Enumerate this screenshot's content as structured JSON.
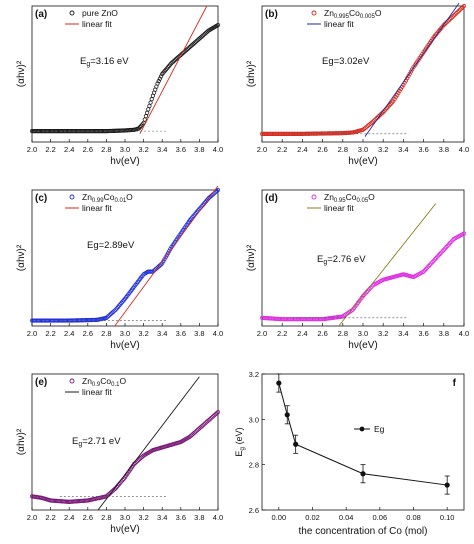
{
  "colors": {
    "black": "#1a1a1a",
    "red": "#d42a1e",
    "blue": "#1f2fd6",
    "magenta": "#dc2fe0",
    "purple": "#7a1a78",
    "olive": "#8a7c1c",
    "navy": "#1a2aa6",
    "gray": "#555555"
  },
  "chart_data": [
    {
      "panel": "(a)",
      "type": "line",
      "xlabel": "hν(eV)",
      "ylabel": "(αhν)²",
      "xlim": [
        2.0,
        4.0
      ],
      "xticks": [
        "2.0",
        "2.2",
        "2.4",
        "2.6",
        "2.8",
        "3.0",
        "3.2",
        "3.4",
        "3.6",
        "3.8",
        "4.0"
      ],
      "series": [
        {
          "name": "pure ZnO",
          "kind": "data",
          "color": "black",
          "marker": "circle",
          "x": [
            2.0,
            2.4,
            2.8,
            3.0,
            3.1,
            3.15,
            3.2,
            3.25,
            3.3,
            3.35,
            3.4,
            3.5,
            3.6,
            3.7,
            3.8,
            3.9,
            4.0
          ],
          "y": [
            0.08,
            0.08,
            0.08,
            0.085,
            0.09,
            0.1,
            0.14,
            0.24,
            0.34,
            0.43,
            0.5,
            0.58,
            0.64,
            0.7,
            0.76,
            0.82,
            0.86
          ]
        },
        {
          "name": "linear fit",
          "kind": "fit",
          "color": "red",
          "x": [
            3.16,
            3.88
          ],
          "y": [
            0.06,
            1.0
          ]
        }
      ],
      "annotation": "E",
      "annotation_sub": "g",
      "annotation_rest": "=3.16 eV"
    },
    {
      "panel": "(b)",
      "type": "line",
      "xlabel": "hν(eV)",
      "ylabel": "(αhν)²",
      "xlim": [
        2.0,
        4.0
      ],
      "xticks": [
        "2.0",
        "2.2",
        "2.4",
        "2.6",
        "2.8",
        "3.0",
        "3.2",
        "3.4",
        "3.6",
        "3.8",
        "4.0"
      ],
      "series": [
        {
          "name": "Zn",
          "name_sub": "0.995",
          "name_mid": "Co",
          "name_sub2": "0.005",
          "name_end": "O",
          "kind": "data",
          "color": "red",
          "marker": "circle",
          "x": [
            2.0,
            2.4,
            2.8,
            2.9,
            3.0,
            3.1,
            3.2,
            3.3,
            3.4,
            3.5,
            3.6,
            3.7,
            3.8,
            3.9,
            4.0
          ],
          "y": [
            0.06,
            0.06,
            0.065,
            0.07,
            0.09,
            0.15,
            0.22,
            0.3,
            0.42,
            0.55,
            0.66,
            0.77,
            0.86,
            0.93,
            1.0
          ]
        },
        {
          "name": "linear fit",
          "kind": "fit",
          "color": "navy",
          "x": [
            3.02,
            3.95
          ],
          "y": [
            0.04,
            1.02
          ]
        }
      ],
      "annotation": "Eg=3.02eV"
    },
    {
      "panel": "(c)",
      "type": "line",
      "xlabel": "hν(eV)",
      "ylabel": "(αhν)²",
      "xlim": [
        2.0,
        4.0
      ],
      "xticks": [
        "2.0",
        "2.2",
        "2.4",
        "2.6",
        "2.8",
        "3.0",
        "3.2",
        "3.4",
        "3.6",
        "3.8",
        "4.0"
      ],
      "series": [
        {
          "name": "Zn",
          "name_sub": "0.99",
          "name_mid": "Co",
          "name_sub2": "0.01",
          "name_end": "O",
          "kind": "data",
          "color": "blue",
          "marker": "circle",
          "x": [
            2.0,
            2.4,
            2.7,
            2.8,
            2.9,
            3.0,
            3.1,
            3.2,
            3.25,
            3.3,
            3.4,
            3.5,
            3.6,
            3.7,
            3.8,
            3.9,
            4.0
          ],
          "y": [
            0.04,
            0.04,
            0.045,
            0.06,
            0.12,
            0.2,
            0.29,
            0.38,
            0.4,
            0.4,
            0.46,
            0.58,
            0.68,
            0.78,
            0.86,
            0.94,
            1.0
          ]
        },
        {
          "name": "linear fit",
          "kind": "fit",
          "color": "red",
          "x": [
            2.89,
            4.0
          ],
          "y": [
            0.0,
            1.03
          ]
        }
      ],
      "annotation": "Eg=2.89eV"
    },
    {
      "panel": "(d)",
      "type": "line",
      "xlabel": "hν(eV)",
      "ylabel": "(αhν)²",
      "xlim": [
        2.0,
        4.0
      ],
      "xticks": [
        "2.0",
        "2.2",
        "2.4",
        "2.6",
        "2.8",
        "3.0",
        "3.2",
        "3.4",
        "3.6",
        "3.8",
        "4.0"
      ],
      "series": [
        {
          "name": "Zn",
          "name_sub": "0.95",
          "name_mid": "Co",
          "name_sub2": "0.05",
          "name_end": "O",
          "kind": "data",
          "color": "magenta",
          "marker": "circle",
          "x": [
            2.0,
            2.2,
            2.4,
            2.6,
            2.8,
            2.9,
            3.0,
            3.1,
            3.2,
            3.3,
            3.4,
            3.5,
            3.6,
            3.7,
            3.8,
            3.9,
            4.0
          ],
          "y": [
            0.06,
            0.05,
            0.05,
            0.05,
            0.07,
            0.12,
            0.22,
            0.3,
            0.34,
            0.36,
            0.38,
            0.36,
            0.4,
            0.48,
            0.56,
            0.64,
            0.68
          ]
        },
        {
          "name": "linear fit",
          "kind": "fit",
          "color": "olive",
          "x": [
            2.76,
            3.72
          ],
          "y": [
            0.0,
            0.9
          ]
        }
      ],
      "annotation": "E",
      "annotation_sub": "g",
      "annotation_rest": "=2.76 eV"
    },
    {
      "panel": "(e)",
      "type": "line",
      "xlabel": "hν(eV)",
      "ylabel": "(αhν)²",
      "xlim": [
        2.0,
        4.0
      ],
      "xticks": [
        "2.0",
        "2.2",
        "2.4",
        "2.6",
        "2.8",
        "3.0",
        "3.2",
        "3.4",
        "3.6",
        "3.8",
        "4.0"
      ],
      "series": [
        {
          "name": "Zn",
          "name_sub": "0.9",
          "name_mid": "Co",
          "name_sub2": "0.1",
          "name_end": "O",
          "kind": "data",
          "color": "purple",
          "marker": "circle",
          "x": [
            2.0,
            2.1,
            2.2,
            2.4,
            2.6,
            2.8,
            2.9,
            3.0,
            3.1,
            3.2,
            3.3,
            3.4,
            3.5,
            3.6,
            3.7,
            3.8,
            3.9,
            4.0
          ],
          "y": [
            0.1,
            0.09,
            0.07,
            0.06,
            0.07,
            0.1,
            0.16,
            0.24,
            0.34,
            0.4,
            0.44,
            0.46,
            0.48,
            0.5,
            0.54,
            0.6,
            0.66,
            0.72
          ]
        },
        {
          "name": "linear fit",
          "kind": "fit",
          "color": "black",
          "x": [
            2.71,
            3.8
          ],
          "y": [
            0.0,
            0.98
          ]
        }
      ],
      "annotation": "E",
      "annotation_sub": "g",
      "annotation_rest": "=2.71 eV"
    },
    {
      "panel": "f",
      "type": "line",
      "xlabel": "the concentration of Co (mol)",
      "ylabel": "E",
      "ylabel_sub": "g",
      "ylabel_rest": " (eV)",
      "xlim": [
        -0.01,
        0.11
      ],
      "ylim": [
        2.6,
        3.2
      ],
      "xticks": [
        0.0,
        0.02,
        0.04,
        0.06,
        0.08,
        0.1
      ],
      "xtick_labels": [
        "0.00",
        "0.02",
        "0.04",
        "0.06",
        "0.08",
        "0.10"
      ],
      "yticks": [
        2.6,
        2.8,
        3.0,
        3.2
      ],
      "ytick_labels": [
        "2.6",
        "2.8",
        "3.0",
        "3.2"
      ],
      "legend": "Eg",
      "series": [
        {
          "name": "Eg",
          "x": [
            0.0,
            0.005,
            0.01,
            0.05,
            0.1
          ],
          "y": [
            3.16,
            3.02,
            2.89,
            2.76,
            2.71
          ],
          "err": [
            0.04,
            0.04,
            0.04,
            0.04,
            0.04
          ]
        }
      ]
    }
  ]
}
